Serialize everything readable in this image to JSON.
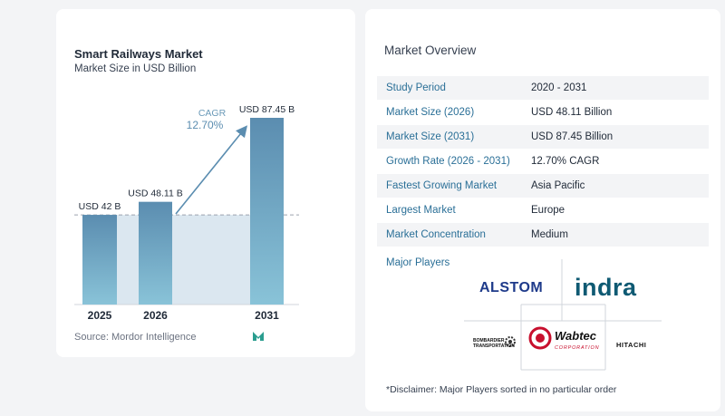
{
  "chart": {
    "title": "Smart Railways Market",
    "subtitle": "Market Size in USD Billion",
    "source": "Source:  Mordor Intelligence",
    "cagr_label": "CAGR",
    "cagr_value": "12.70%"
  },
  "chart_data": {
    "type": "bar",
    "title": "Smart Railways Market",
    "subtitle": "Market Size in USD Billion",
    "categories": [
      "2025",
      "2026",
      "2031"
    ],
    "values": [
      42,
      48.11,
      87.45
    ],
    "data_labels": [
      "USD 42 B",
      "USD 48.11 B",
      "USD 87.45 B"
    ],
    "xlabel": "",
    "ylabel": "",
    "ylim": [
      0,
      87.45
    ],
    "grid": false,
    "reference_line": 42,
    "annotation": "CAGR 12.70%",
    "colors": {
      "bar_top": "#5b8db0",
      "bar_bottom": "#89c3d8",
      "band": "#dbe7f0",
      "arrow": "#5b8db0"
    }
  },
  "overview": {
    "title": "Market Overview",
    "rows": [
      {
        "key": "Study Period",
        "value": "2020 - 2031"
      },
      {
        "key": "Market Size (2026)",
        "value": "USD 48.11 Billion"
      },
      {
        "key": "Market Size (2031)",
        "value": "USD 87.45 Billion"
      },
      {
        "key": "Growth Rate (2026 - 2031)",
        "value": "12.70% CAGR"
      },
      {
        "key": "Fastest Growing Market",
        "value": "Asia Pacific"
      },
      {
        "key": "Largest Market",
        "value": "Europe"
      },
      {
        "key": "Market Concentration",
        "value": "Medium"
      }
    ]
  },
  "players": {
    "label": "Major Players",
    "logos": {
      "alstom": "ALSTOM",
      "indra": "indra",
      "bombardier": "BOMBARDIER TRANSPORTATION",
      "wabtec": "Wabtec",
      "wabtec_sub": "CORPORATION",
      "hitachi": "HITACHI"
    },
    "disclaimer": "*Disclaimer: Major Players sorted in no particular order"
  }
}
